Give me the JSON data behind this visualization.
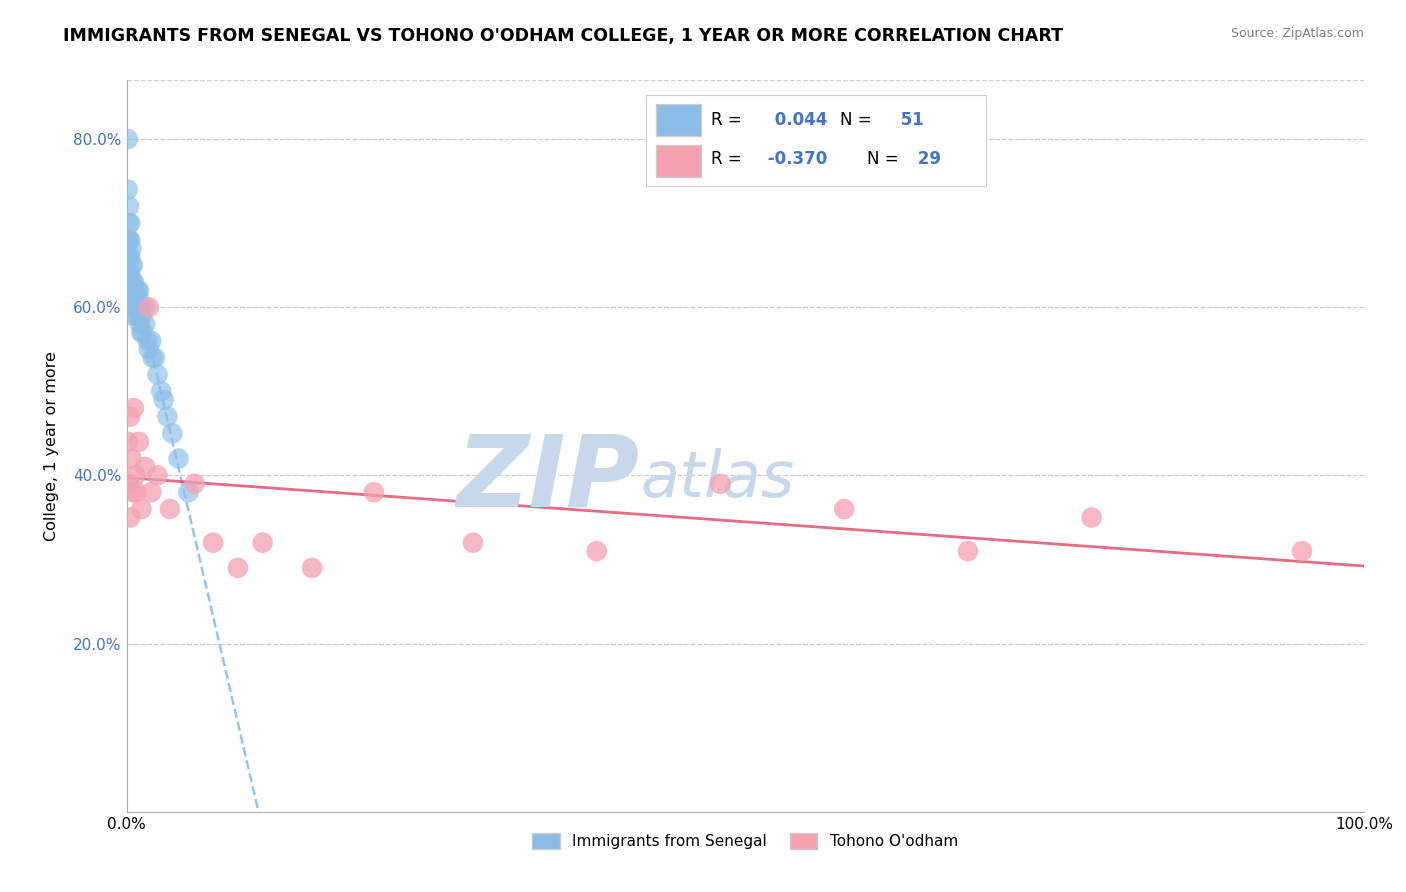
{
  "title": "IMMIGRANTS FROM SENEGAL VS TOHONO O'ODHAM COLLEGE, 1 YEAR OR MORE CORRELATION CHART",
  "source": "Source: ZipAtlas.com",
  "ylabel": "College, 1 year or more",
  "y_ticks": [
    0.2,
    0.4,
    0.6,
    0.8
  ],
  "y_tick_labels": [
    "20.0%",
    "40.0%",
    "60.0%",
    "80.0%"
  ],
  "x_tick_labels": [
    "0.0%",
    "100.0%"
  ],
  "xlim": [
    0.0,
    1.0
  ],
  "ylim": [
    0.0,
    0.87
  ],
  "R1": "0.044",
  "N1": "51",
  "R2": "-0.370",
  "N2": "29",
  "legend_label1": "Immigrants from Senegal",
  "legend_label2": "Tohono O'odham",
  "color_blue": "#8BBDE8",
  "color_pink": "#F4A0B0",
  "color_blue_text": "#4472C4",
  "color_pink_text": "#E05070",
  "background_color": "#FFFFFF",
  "title_fontsize": 12.5,
  "source_fontsize": 9,
  "blue_scatter_x": [
    0.001,
    0.001,
    0.001,
    0.002,
    0.002,
    0.002,
    0.002,
    0.003,
    0.003,
    0.003,
    0.003,
    0.003,
    0.004,
    0.004,
    0.004,
    0.004,
    0.005,
    0.005,
    0.005,
    0.005,
    0.006,
    0.006,
    0.006,
    0.007,
    0.007,
    0.008,
    0.008,
    0.009,
    0.009,
    0.01,
    0.01,
    0.01,
    0.011,
    0.011,
    0.012,
    0.012,
    0.013,
    0.015,
    0.015,
    0.017,
    0.018,
    0.02,
    0.021,
    0.023,
    0.025,
    0.028,
    0.03,
    0.033,
    0.037,
    0.042,
    0.05
  ],
  "blue_scatter_y": [
    0.8,
    0.74,
    0.68,
    0.72,
    0.7,
    0.68,
    0.66,
    0.7,
    0.68,
    0.66,
    0.64,
    0.62,
    0.67,
    0.65,
    0.63,
    0.61,
    0.65,
    0.63,
    0.61,
    0.59,
    0.63,
    0.62,
    0.6,
    0.61,
    0.6,
    0.61,
    0.59,
    0.62,
    0.6,
    0.62,
    0.61,
    0.59,
    0.6,
    0.58,
    0.59,
    0.57,
    0.57,
    0.6,
    0.58,
    0.56,
    0.55,
    0.56,
    0.54,
    0.54,
    0.52,
    0.5,
    0.49,
    0.47,
    0.45,
    0.42,
    0.38
  ],
  "pink_scatter_x": [
    0.001,
    0.002,
    0.003,
    0.003,
    0.004,
    0.005,
    0.006,
    0.007,
    0.008,
    0.01,
    0.012,
    0.015,
    0.018,
    0.02,
    0.025,
    0.035,
    0.055,
    0.07,
    0.09,
    0.11,
    0.15,
    0.2,
    0.28,
    0.38,
    0.48,
    0.58,
    0.68,
    0.78,
    0.95
  ],
  "pink_scatter_y": [
    0.44,
    0.39,
    0.47,
    0.35,
    0.42,
    0.38,
    0.48,
    0.4,
    0.38,
    0.44,
    0.36,
    0.41,
    0.6,
    0.38,
    0.4,
    0.36,
    0.39,
    0.32,
    0.29,
    0.32,
    0.29,
    0.38,
    0.32,
    0.31,
    0.39,
    0.36,
    0.31,
    0.35,
    0.31
  ]
}
